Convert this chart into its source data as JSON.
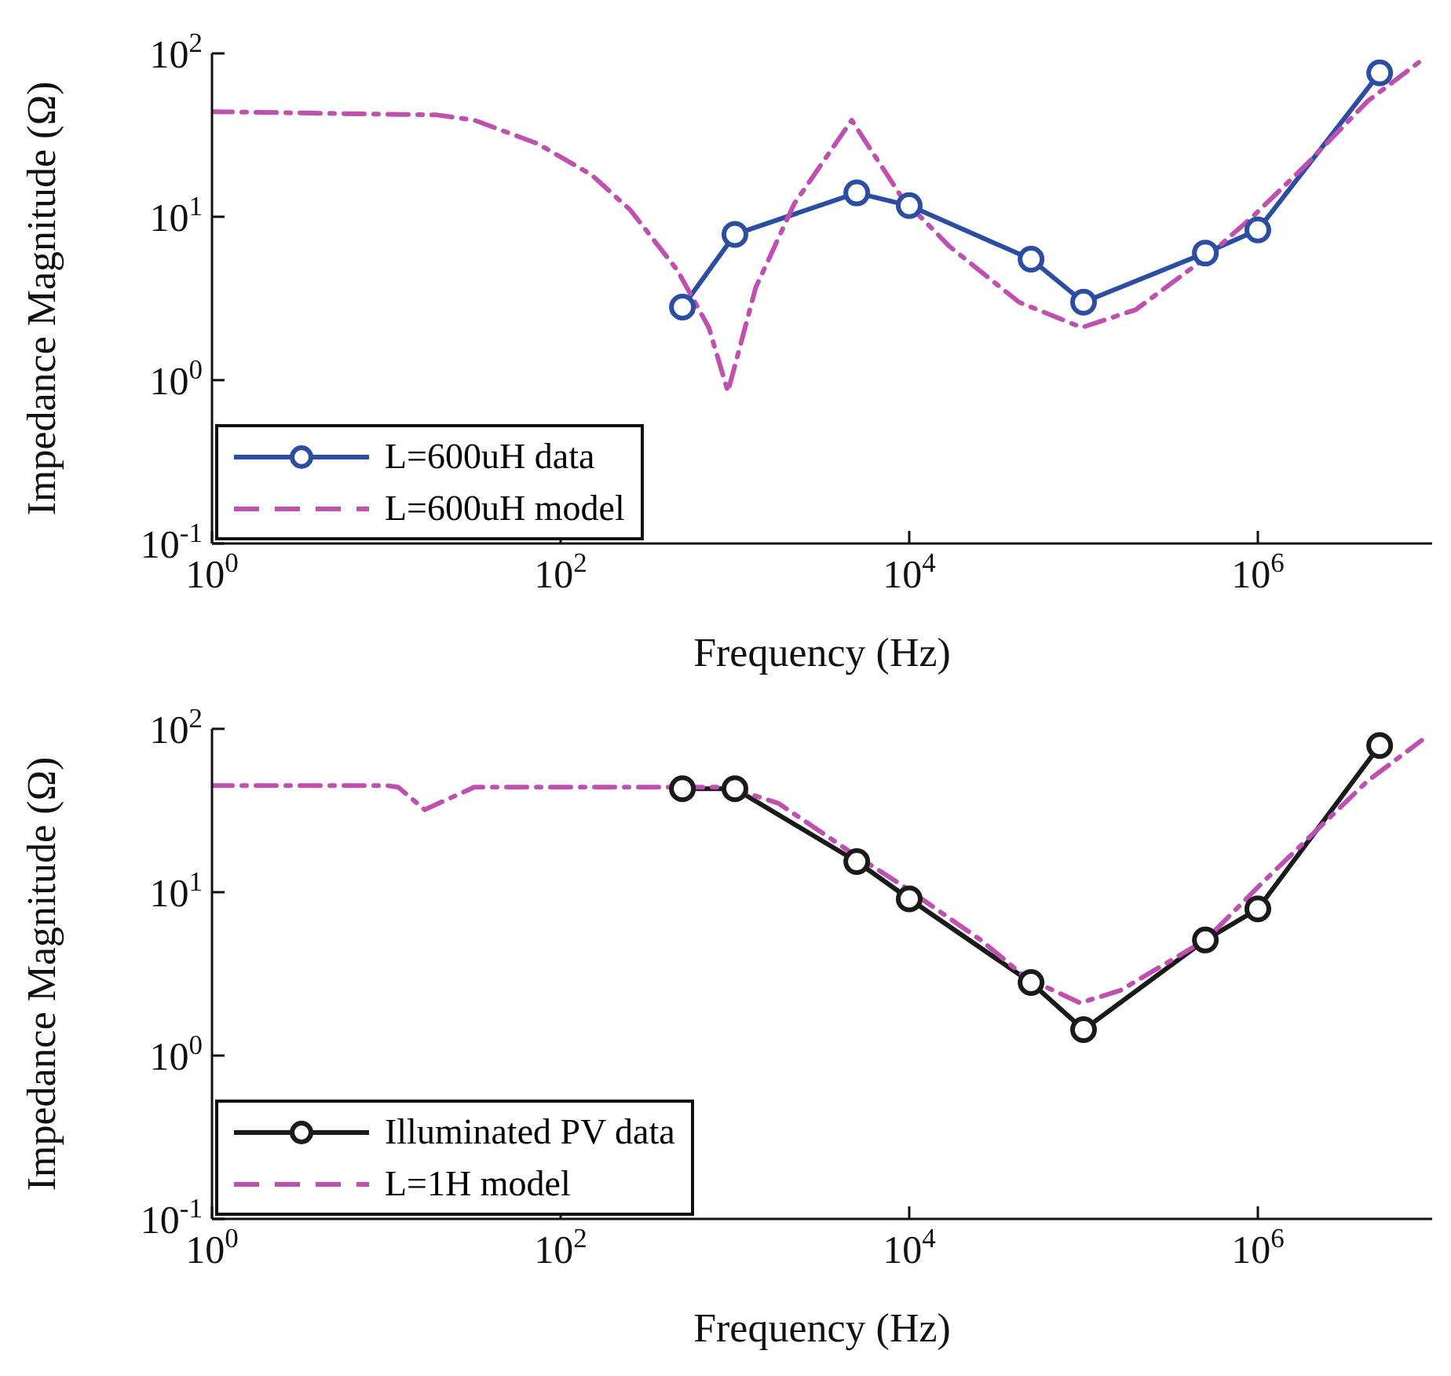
{
  "chart_data": [
    {
      "type": "line",
      "xlabel": "Frequency (Hz)",
      "ylabel": "Impedance Magnitude (Ω)",
      "log": "xy",
      "xlim": [
        1,
        10000000
      ],
      "ylim": [
        0.1,
        100
      ],
      "xticks": [
        {
          "value": 1,
          "label": "10$^{0}$"
        },
        {
          "value": 100,
          "label": "10$^{2}$"
        },
        {
          "value": 10000,
          "label": "10$^{4}$"
        },
        {
          "value": 1000000,
          "label": "10$^{6}$"
        }
      ],
      "yticks": [
        {
          "value": 0.1,
          "label": "10$^{-1}$"
        },
        {
          "value": 1,
          "label": "10$^{0}$"
        },
        {
          "value": 10,
          "label": "10$^{1}$"
        },
        {
          "value": 100,
          "label": "10$^{2}$"
        }
      ],
      "grid": false,
      "legend": "bottom left",
      "series": [
        {
          "name": "L=600uH data",
          "color": "#2b4ea2",
          "marker": "circle",
          "line_style": "solid",
          "x": [
            500,
            1000,
            5000,
            10000,
            50000,
            100000,
            500000,
            1000000,
            5000000
          ],
          "values": [
            2.8,
            7.8,
            14,
            11.7,
            5.5,
            3.0,
            6.0,
            8.3,
            76
          ]
        },
        {
          "name": "L=600uH model",
          "color": "#c050b0",
          "marker": "none",
          "line_style": "dashed",
          "x": [
            1,
            19.5,
            32,
            74,
            151,
            251,
            468,
            708,
            912,
            1318,
            2188,
            4677,
            9120,
            16982,
            42658,
            97724,
            199526,
            501187,
            933254,
            1905461,
            4265795,
            8709636
          ],
          "values": [
            44,
            42,
            39,
            28,
            18,
            11,
            4.7,
            2.1,
            0.85,
            3.7,
            12,
            39,
            13,
            6.6,
            3.0,
            2.1,
            2.7,
            5.6,
            10,
            21,
            51,
            91
          ]
        }
      ]
    },
    {
      "type": "line",
      "xlabel": "Frequency (Hz)",
      "ylabel": "Impedance Magnitude (Ω)",
      "log": "xy",
      "xlim": [
        1,
        10000000
      ],
      "ylim": [
        0.1,
        100
      ],
      "xticks": [
        {
          "value": 1,
          "label": "10$^{0}$"
        },
        {
          "value": 100,
          "label": "10$^{2}$"
        },
        {
          "value": 10000,
          "label": "10$^{4}$"
        },
        {
          "value": 1000000,
          "label": "10$^{6}$"
        }
      ],
      "yticks": [
        {
          "value": 0.1,
          "label": "10$^{-1}$"
        },
        {
          "value": 1,
          "label": "10$^{0}$"
        },
        {
          "value": 10,
          "label": "10$^{1}$"
        },
        {
          "value": 100,
          "label": "10$^{2}$"
        }
      ],
      "grid": false,
      "legend": "bottom left",
      "series": [
        {
          "name": "Illuminated PV data",
          "color": "#1a1a1a",
          "marker": "circle",
          "line_style": "solid",
          "x": [
            500,
            1000,
            5000,
            10000,
            50000,
            100000,
            500000,
            1000000,
            5000000
          ],
          "values": [
            43,
            43,
            15.4,
            9.1,
            2.8,
            1.44,
            5.1,
            7.9,
            79
          ]
        },
        {
          "name": "L=1H model",
          "color": "#c050b0",
          "marker": "none",
          "line_style": "dashed",
          "x": [
            1,
            10,
            11.7,
            16.6,
            32,
            316,
            912,
            1778,
            4467,
            9120,
            25704,
            46774,
            95499,
            162181,
            501187,
            1023293,
            2089296,
            4265795,
            8709636
          ],
          "values": [
            45,
            45,
            44,
            32,
            44,
            44,
            44,
            35,
            18,
            11,
            5.1,
            3.0,
            2.1,
            2.5,
            5.1,
            11,
            23,
            48,
            85
          ]
        }
      ]
    }
  ]
}
